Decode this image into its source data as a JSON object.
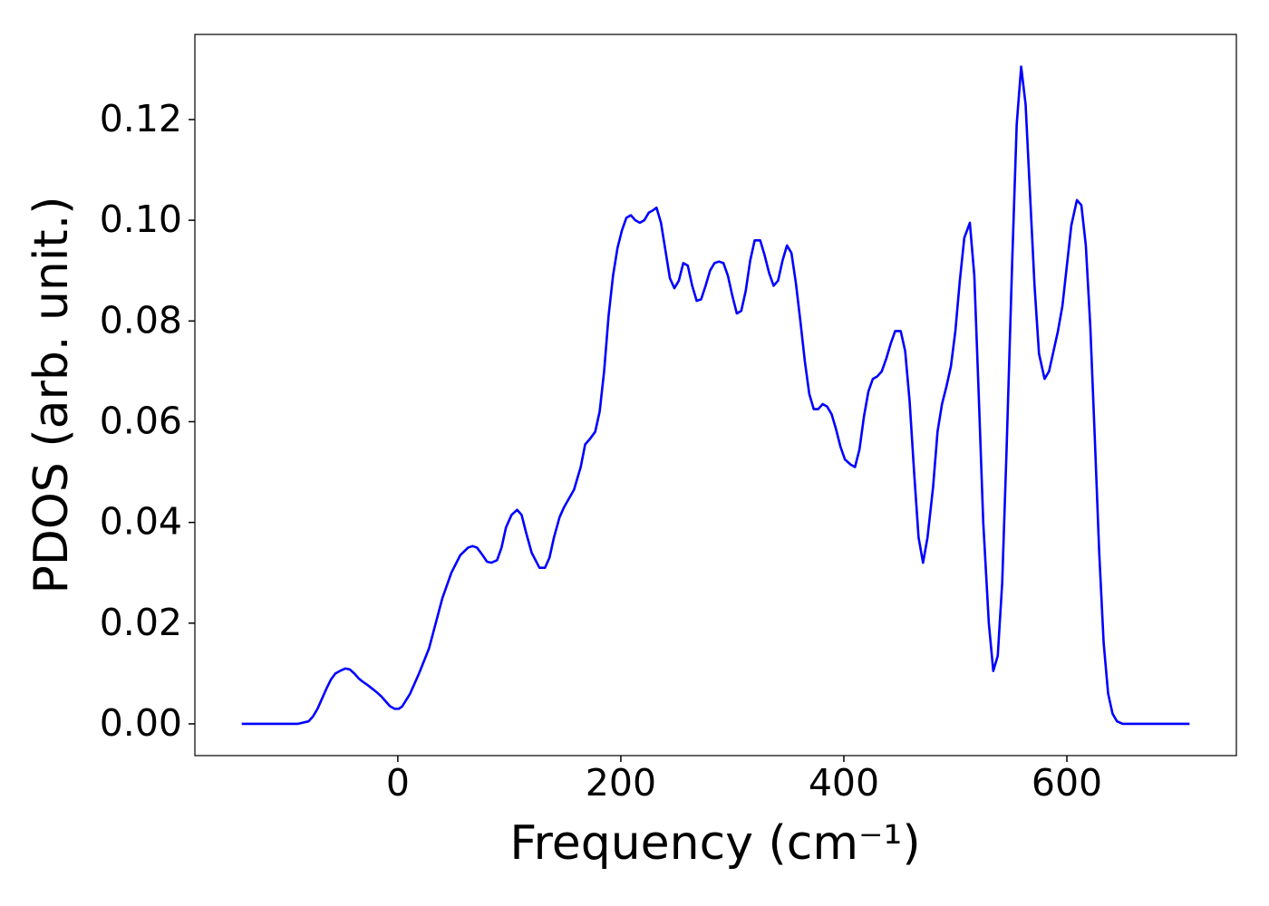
{
  "chart_data": {
    "type": "line",
    "xlabel": "Frequency (cm⁻¹)",
    "ylabel": "PDOS (arb. unit.)",
    "color": "#0000ff",
    "x": [
      -140,
      -90,
      -80,
      -76,
      -72,
      -68,
      -64,
      -60,
      -56,
      -52,
      -47,
      -43,
      -39,
      -35,
      -31,
      -27,
      -23,
      -19,
      -15,
      -11,
      -7,
      -3,
      1,
      4,
      11,
      19,
      28,
      34,
      40,
      48,
      56,
      63,
      67,
      71,
      76,
      80,
      84,
      89,
      93,
      97,
      102,
      107,
      111,
      115,
      120,
      127,
      132,
      136,
      140,
      145,
      149,
      158,
      164,
      168,
      172,
      177,
      181,
      185,
      189,
      193,
      197,
      201,
      205,
      209,
      213,
      217,
      221,
      225,
      229,
      232,
      236,
      240,
      244,
      248,
      252,
      256,
      260,
      264,
      268,
      272,
      276,
      280,
      284,
      288,
      292,
      296,
      300,
      304,
      308,
      312,
      316,
      320,
      325,
      329,
      333,
      337,
      341,
      345,
      349,
      353,
      357,
      361,
      365,
      369,
      373,
      377,
      381,
      385,
      389,
      393,
      397,
      401,
      406,
      410,
      414,
      418,
      422,
      426,
      430,
      434,
      438,
      442,
      446,
      451,
      455,
      459,
      463,
      467,
      471,
      475,
      480,
      484,
      488,
      492,
      496,
      500,
      504,
      508,
      513,
      517,
      521,
      525,
      530,
      534,
      538,
      542,
      546,
      551,
      555,
      559,
      563,
      567,
      571,
      575,
      580,
      584,
      588,
      592,
      596,
      600,
      604,
      609,
      613,
      617,
      621,
      625,
      629,
      633,
      637,
      641,
      645,
      650,
      710
    ],
    "values": [
      0,
      0,
      0.0005,
      0.0015,
      0.003,
      0.005,
      0.007,
      0.0088,
      0.01,
      0.0105,
      0.011,
      0.0108,
      0.01,
      0.009,
      0.0083,
      0.0077,
      0.007,
      0.0063,
      0.0055,
      0.0045,
      0.0035,
      0.003,
      0.003,
      0.0035,
      0.006,
      0.01,
      0.015,
      0.02,
      0.025,
      0.03,
      0.0335,
      0.035,
      0.0353,
      0.035,
      0.0335,
      0.0322,
      0.032,
      0.0325,
      0.035,
      0.039,
      0.0415,
      0.0425,
      0.0415,
      0.038,
      0.034,
      0.031,
      0.031,
      0.033,
      0.037,
      0.041,
      0.043,
      0.0465,
      0.051,
      0.0555,
      0.0565,
      0.058,
      0.062,
      0.07,
      0.081,
      0.089,
      0.0945,
      0.098,
      0.1005,
      0.101,
      0.1,
      0.0995,
      0.1,
      0.1015,
      0.102,
      0.1025,
      0.0995,
      0.094,
      0.0885,
      0.0865,
      0.088,
      0.0915,
      0.091,
      0.087,
      0.084,
      0.0843,
      0.087,
      0.09,
      0.0915,
      0.0918,
      0.0915,
      0.089,
      0.085,
      0.0815,
      0.082,
      0.086,
      0.092,
      0.096,
      0.096,
      0.093,
      0.0895,
      0.087,
      0.088,
      0.092,
      0.095,
      0.0935,
      0.0875,
      0.08,
      0.072,
      0.0655,
      0.0625,
      0.0625,
      0.0635,
      0.063,
      0.0615,
      0.0585,
      0.055,
      0.0525,
      0.0515,
      0.051,
      0.0545,
      0.061,
      0.066,
      0.0685,
      0.069,
      0.07,
      0.0725,
      0.0755,
      0.078,
      0.078,
      0.074,
      0.064,
      0.05,
      0.037,
      0.032,
      0.037,
      0.047,
      0.058,
      0.0635,
      0.067,
      0.071,
      0.078,
      0.088,
      0.0965,
      0.0995,
      0.089,
      0.065,
      0.04,
      0.02,
      0.0105,
      0.0135,
      0.028,
      0.055,
      0.092,
      0.119,
      0.1305,
      0.123,
      0.105,
      0.087,
      0.0735,
      0.0685,
      0.07,
      0.074,
      0.078,
      0.083,
      0.091,
      0.099,
      0.104,
      0.103,
      0.095,
      0.079,
      0.057,
      0.034,
      0.016,
      0.006,
      0.002,
      0.0005,
      0,
      0
    ],
    "xlim": [
      -182,
      752
    ],
    "ylim": [
      -0.0063,
      0.1369
    ],
    "xticks": [
      0,
      200,
      400,
      600
    ],
    "yticks": [
      {
        "value": 0,
        "label": "0.00"
      },
      {
        "value": 0.02,
        "label": "0.02"
      },
      {
        "value": 0.04,
        "label": "0.04"
      },
      {
        "value": 0.06,
        "label": "0.06"
      },
      {
        "value": 0.08,
        "label": "0.08"
      },
      {
        "value": 0.1,
        "label": "0.10"
      },
      {
        "value": 0.12,
        "label": "0.12"
      }
    ],
    "grid": false
  }
}
